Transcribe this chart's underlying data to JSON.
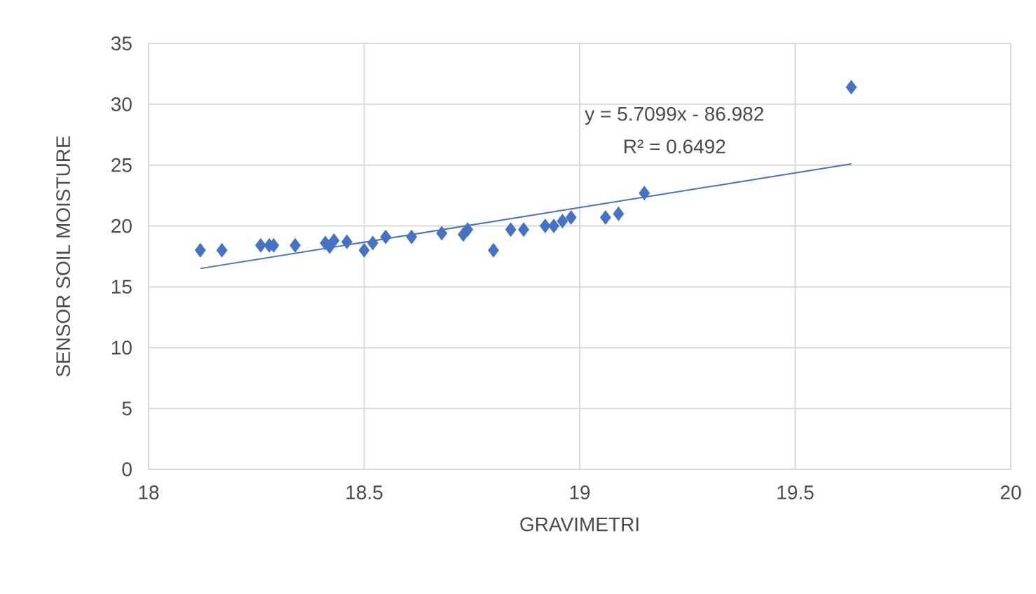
{
  "chart_data": {
    "type": "scatter",
    "xlabel": "GRAVIMETRI",
    "ylabel": "SENSOR SOIL MOISTURE",
    "xlim": [
      18,
      20
    ],
    "xticks": [
      18,
      18.5,
      19,
      19.5,
      20
    ],
    "ylim": [
      0,
      35
    ],
    "yticks": [
      0,
      5,
      10,
      15,
      20,
      25,
      30,
      35
    ],
    "grid": true,
    "annotations": [
      "y = 5.7099x - 86.982",
      "R² = 0.6492"
    ],
    "series": [
      {
        "marker": "diamond",
        "color": "#4472c4",
        "x": [
          18.12,
          18.17,
          18.26,
          18.28,
          18.29,
          18.34,
          18.41,
          18.42,
          18.43,
          18.46,
          18.5,
          18.52,
          18.55,
          18.61,
          18.68,
          18.73,
          18.74,
          18.8,
          18.84,
          18.87,
          18.92,
          18.94,
          18.96,
          18.98,
          19.06,
          19.09,
          19.15,
          19.63
        ],
        "values": [
          18.0,
          18.0,
          18.4,
          18.4,
          18.4,
          18.4,
          18.6,
          18.3,
          18.8,
          18.7,
          18.0,
          18.6,
          19.1,
          19.1,
          19.4,
          19.3,
          19.7,
          18.0,
          19.7,
          19.7,
          20.0,
          20.0,
          20.4,
          20.7,
          20.7,
          21.0,
          22.7,
          31.4
        ]
      },
      {
        "type": "line",
        "color": "#4472c4",
        "x": [
          18.12,
          19.63
        ],
        "values": [
          16.5,
          25.1
        ]
      }
    ]
  }
}
